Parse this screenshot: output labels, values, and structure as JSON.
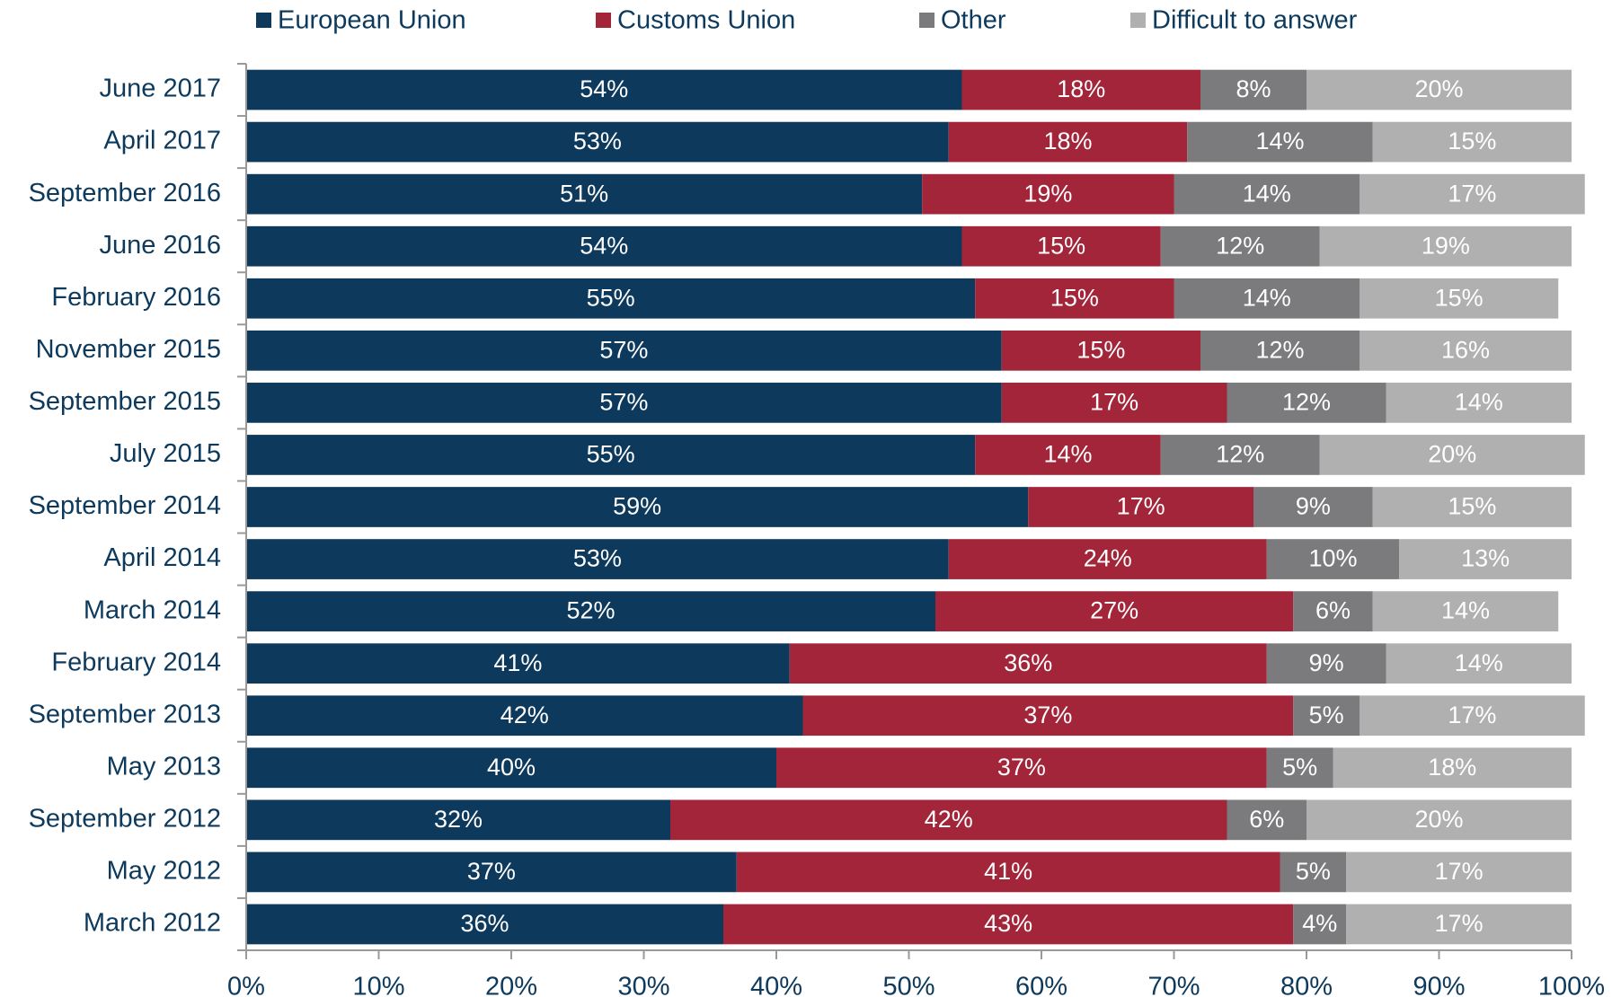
{
  "chart_data": {
    "type": "stacked_barh",
    "categories": [
      "June 2017",
      "April 2017",
      "September 2016",
      "June 2016",
      "February 2016",
      "November 2015",
      "September 2015",
      "July 2015",
      "September 2014",
      "April 2014",
      "March 2014",
      "February 2014",
      "September 2013",
      "May 2013",
      "September 2012",
      "May 2012",
      "March 2012"
    ],
    "series": [
      {
        "name": "European Union",
        "color": "#0d3a5c",
        "values": [
          54,
          53,
          51,
          54,
          55,
          57,
          57,
          55,
          59,
          53,
          52,
          41,
          42,
          40,
          32,
          37,
          36
        ],
        "value_labels": [
          "54%",
          "53%",
          "51%",
          "54%",
          "55%",
          "57%",
          "57%",
          "55%",
          "59%",
          "53%",
          "52%",
          "41%",
          "42%",
          "40%",
          "32%",
          "37%",
          "36%"
        ]
      },
      {
        "name": "Customs Union",
        "color": "#a3253a",
        "values": [
          18,
          18,
          19,
          15,
          15,
          15,
          17,
          14,
          17,
          24,
          27,
          36,
          37,
          37,
          42,
          41,
          43
        ],
        "value_labels": [
          "18%",
          "18%",
          "19%",
          "15%",
          "15%",
          "15%",
          "17%",
          "14%",
          "17%",
          "24%",
          "27%",
          "36%",
          "37%",
          "37%",
          "42%",
          "41%",
          "43%"
        ]
      },
      {
        "name": "Other",
        "color": "#7b7b7d",
        "values": [
          8,
          14,
          14,
          12,
          14,
          12,
          12,
          12,
          9,
          10,
          6,
          9,
          5,
          5,
          6,
          5,
          4
        ],
        "value_labels": [
          "8%",
          "14%",
          "14%",
          "12%",
          "14%",
          "12%",
          "12%",
          "12%",
          "9%",
          "10%",
          "6%",
          "9%",
          "5%",
          "5%",
          "6%",
          "5%",
          "4%"
        ]
      },
      {
        "name": "Difficult to answer",
        "color": "#b0b0b0",
        "values": [
          20,
          15,
          17,
          19,
          15,
          16,
          14,
          20,
          15,
          13,
          14,
          14,
          17,
          18,
          20,
          17,
          17
        ],
        "value_labels": [
          "20%",
          "15%",
          "17%",
          "19%",
          "15%",
          "16%",
          "14%",
          "20%",
          "15%",
          "13%",
          "14%",
          "14%",
          "17%",
          "18%",
          "20%",
          "17%",
          "17%"
        ]
      }
    ],
    "xlim": [
      0,
      100
    ],
    "xticks": [
      {
        "value": 0,
        "label": "0%"
      },
      {
        "value": 10,
        "label": "10%"
      },
      {
        "value": 20,
        "label": "20%"
      },
      {
        "value": 30,
        "label": "30%"
      },
      {
        "value": 40,
        "label": "40%"
      },
      {
        "value": 50,
        "label": "50%"
      },
      {
        "value": 60,
        "label": "60%"
      },
      {
        "value": 70,
        "label": "70%"
      },
      {
        "value": 80,
        "label": "80%"
      },
      {
        "value": 90,
        "label": "90%"
      },
      {
        "value": 100,
        "label": "100%"
      }
    ],
    "legend": "top"
  }
}
